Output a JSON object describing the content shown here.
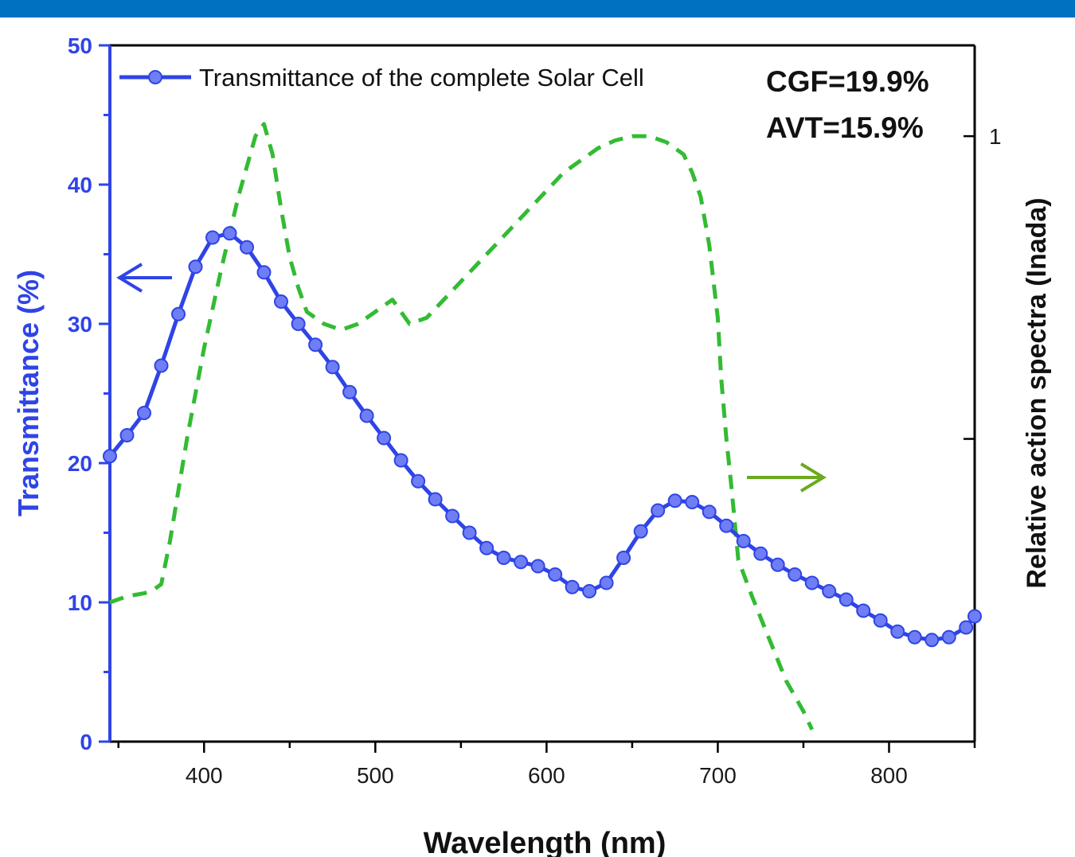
{
  "chart_data": {
    "type": "line",
    "title": "",
    "xlabel": "Wavelength (nm)",
    "ylabel_left": "Transmittance (%)",
    "ylabel_right": "Relative action spectra (Inada)",
    "xlim": [
      345,
      850
    ],
    "ylim_left": [
      0,
      50
    ],
    "ylim_right": [
      0,
      1.15
    ],
    "x_ticks": [
      400,
      500,
      600,
      700,
      800
    ],
    "y_left_ticks": [
      0,
      10,
      20,
      30,
      40,
      50
    ],
    "y_right_ticks": [
      {
        "value": 1,
        "label": "1"
      },
      {
        "value": 0.5,
        "label": ""
      }
    ],
    "grid": false,
    "legend_position": "top-left",
    "annotations": [
      "CGF=19.9%",
      "AVT=15.9%"
    ],
    "colors": {
      "transmittance": "#2f44e6",
      "action": "#33bb33",
      "right_arrow": "#6aaa1e",
      "top_band": "#0070c0"
    },
    "series": [
      {
        "name": "Transmittance of the complete Solar Cell",
        "axis": "left",
        "style": "solid-with-markers",
        "x": [
          345,
          355,
          365,
          375,
          385,
          395,
          405,
          415,
          425,
          435,
          445,
          455,
          465,
          475,
          485,
          495,
          505,
          515,
          525,
          535,
          545,
          555,
          565,
          575,
          585,
          595,
          605,
          615,
          625,
          635,
          645,
          655,
          665,
          675,
          685,
          695,
          705,
          715,
          725,
          735,
          745,
          755,
          765,
          775,
          785,
          795,
          805,
          815,
          825,
          835,
          845,
          850
        ],
        "y": [
          20.5,
          22.0,
          23.6,
          27.0,
          30.7,
          34.1,
          36.2,
          36.5,
          35.5,
          33.7,
          31.6,
          30.0,
          28.5,
          26.9,
          25.1,
          23.4,
          21.8,
          20.2,
          18.7,
          17.4,
          16.2,
          15.0,
          13.9,
          13.2,
          12.9,
          12.6,
          12.0,
          11.1,
          10.8,
          11.4,
          13.2,
          15.1,
          16.6,
          17.3,
          17.2,
          16.5,
          15.5,
          14.4,
          13.5,
          12.7,
          12.0,
          11.4,
          10.8,
          10.2,
          9.4,
          8.7,
          7.9,
          7.5,
          7.3,
          7.5,
          8.2,
          9.0
        ]
      },
      {
        "name": "",
        "axis": "right",
        "style": "dashed",
        "x": [
          345,
          355,
          365,
          370,
          375,
          380,
          390,
          400,
          410,
          420,
          430,
          435,
          440,
          445,
          450,
          455,
          460,
          470,
          480,
          490,
          500,
          510,
          520,
          530,
          540,
          550,
          560,
          570,
          580,
          590,
          600,
          610,
          620,
          630,
          640,
          650,
          660,
          670,
          680,
          685,
          690,
          695,
          700,
          702,
          705,
          708,
          710,
          712,
          720,
          730,
          740,
          750,
          755
        ],
        "y": [
          0.23,
          0.24,
          0.245,
          0.25,
          0.26,
          0.33,
          0.5,
          0.65,
          0.78,
          0.9,
          1.0,
          1.02,
          0.97,
          0.88,
          0.8,
          0.75,
          0.71,
          0.69,
          0.68,
          0.69,
          0.71,
          0.73,
          0.69,
          0.7,
          0.73,
          0.76,
          0.79,
          0.82,
          0.85,
          0.88,
          0.91,
          0.94,
          0.96,
          0.98,
          0.993,
          1.0,
          1.0,
          0.99,
          0.97,
          0.94,
          0.9,
          0.82,
          0.7,
          0.6,
          0.5,
          0.42,
          0.36,
          0.3,
          0.24,
          0.17,
          0.1,
          0.05,
          0.02
        ]
      }
    ]
  }
}
